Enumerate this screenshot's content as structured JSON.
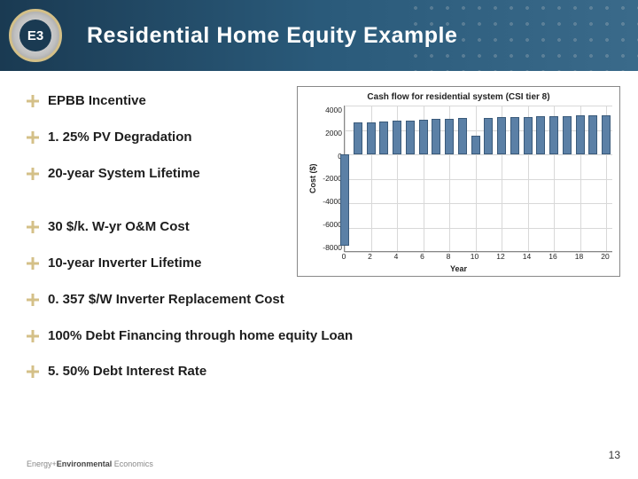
{
  "header": {
    "title": "Residential Home Equity Example",
    "logo_text": "E3"
  },
  "bullets_top": [
    {
      "text": "EPBB Incentive"
    },
    {
      "text": "1. 25% PV Degradation"
    },
    {
      "text": "20-year System Lifetime"
    }
  ],
  "bullets_bottom": [
    {
      "text": "30 $/k. W-yr O&M Cost"
    },
    {
      "text": "10-year Inverter Lifetime"
    },
    {
      "text": "0. 357 $/W Inverter Replacement Cost"
    },
    {
      "text": "100% Debt Financing through home equity Loan"
    },
    {
      "text": "5. 50% Debt Interest Rate"
    }
  ],
  "bullet_icon_color": "#d4c088",
  "chart": {
    "type": "bar",
    "title": "Cash flow for residential system (CSI tier 8)",
    "ylabel": "Cost ($)",
    "xlabel": "Year",
    "ylim": [
      -8000,
      4000
    ],
    "ytick_step": 2000,
    "yticks": [
      4000,
      2000,
      0,
      -2000,
      -4000,
      -6000,
      -8000
    ],
    "xticks": [
      0,
      2,
      4,
      6,
      8,
      10,
      12,
      14,
      16,
      18,
      20
    ],
    "values": [
      {
        "x": 0,
        "y": -7500
      },
      {
        "x": 1,
        "y": 2600
      },
      {
        "x": 2,
        "y": 2650
      },
      {
        "x": 3,
        "y": 2700
      },
      {
        "x": 4,
        "y": 2750
      },
      {
        "x": 5,
        "y": 2800
      },
      {
        "x": 6,
        "y": 2850
      },
      {
        "x": 7,
        "y": 2880
      },
      {
        "x": 8,
        "y": 2920
      },
      {
        "x": 9,
        "y": 2960
      },
      {
        "x": 10,
        "y": 1500
      },
      {
        "x": 11,
        "y": 3000
      },
      {
        "x": 12,
        "y": 3030
      },
      {
        "x": 13,
        "y": 3060
      },
      {
        "x": 14,
        "y": 3080
      },
      {
        "x": 15,
        "y": 3100
      },
      {
        "x": 16,
        "y": 3120
      },
      {
        "x": 17,
        "y": 3150
      },
      {
        "x": 18,
        "y": 3170
      },
      {
        "x": 19,
        "y": 3190
      },
      {
        "x": 20,
        "y": 3200
      }
    ],
    "bar_color": "#5b80a6",
    "bar_border": "#3a5a7a",
    "grid_color": "#d8d8d8",
    "axis_color": "#888888",
    "title_fontsize": 10,
    "label_fontsize": 9,
    "tick_fontsize": 8.5,
    "x_range": [
      0,
      20
    ]
  },
  "footer": {
    "brand_prefix": "Energy+",
    "brand_main": "Environmental",
    "brand_suffix": " Economics",
    "page_number": "13"
  }
}
